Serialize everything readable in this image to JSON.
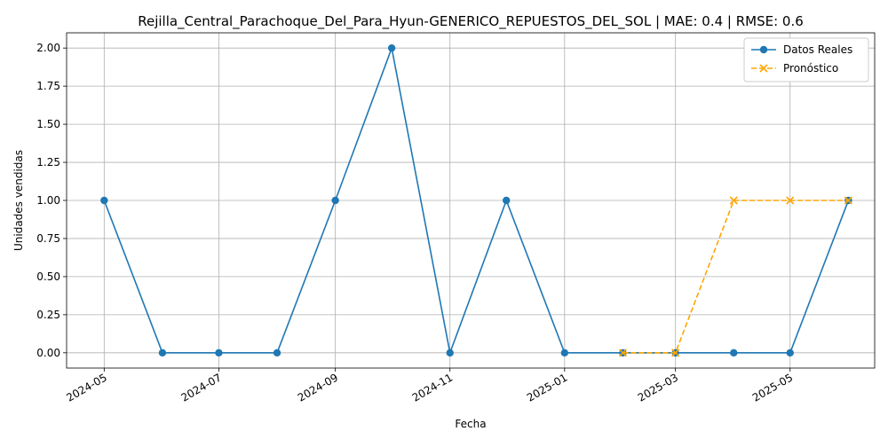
{
  "chart_data": {
    "type": "line",
    "title": "Rejilla_Central_Parachoque_Del_Para_Hyun-GENERICO_REPUESTOS_DEL_SOL | MAE: 0.4 | RMSE: 0.6",
    "xlabel": "Fecha",
    "ylabel": "Unidades vendidas",
    "ylim": [
      -0.1,
      2.1
    ],
    "xlim_days": [
      -20,
      410
    ],
    "x_origin": "2024-05-01",
    "yticks": [
      0.0,
      0.25,
      0.5,
      0.75,
      1.0,
      1.25,
      1.5,
      1.75,
      2.0
    ],
    "ytick_labels": [
      "0.00",
      "0.25",
      "0.50",
      "0.75",
      "1.00",
      "1.25",
      "1.50",
      "1.75",
      "2.00"
    ],
    "xticks_days": [
      0,
      61,
      123,
      184,
      245,
      304,
      365
    ],
    "xtick_labels": [
      "2024-05",
      "2024-07",
      "2024-09",
      "2024-11",
      "2025-01",
      "2025-03",
      "2025-05"
    ],
    "grid": true,
    "legend_position": "top-right",
    "series": [
      {
        "name": "Datos Reales",
        "color": "#1f77b4",
        "marker": "circle",
        "linestyle": "solid",
        "x_days": [
          0,
          31,
          61,
          92,
          123,
          153,
          184,
          214,
          245,
          276,
          304,
          335,
          365,
          396
        ],
        "values": [
          1,
          0,
          0,
          0,
          1,
          2,
          0,
          1,
          0,
          0,
          0,
          0,
          0,
          1
        ]
      },
      {
        "name": "Pronóstico",
        "color": "#ffa500",
        "marker": "x",
        "linestyle": "dashed",
        "x_days": [
          276,
          304,
          335,
          365,
          396
        ],
        "values": [
          0,
          0,
          1,
          1,
          1
        ]
      }
    ]
  }
}
